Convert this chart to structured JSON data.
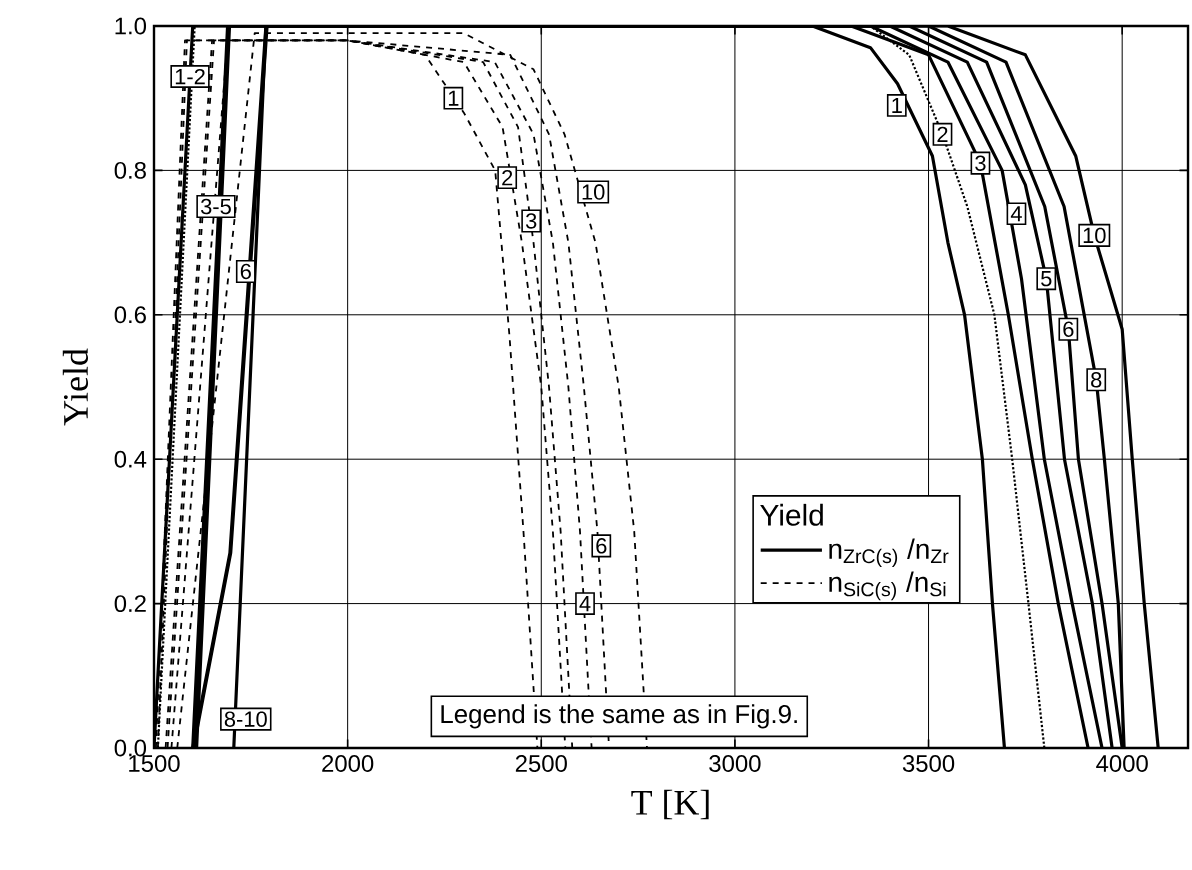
{
  "chart_data": {
    "type": "line",
    "xlabel": "T [K]",
    "ylabel": "Yield",
    "legend_title": "Yield",
    "legend": "right",
    "grid": true,
    "xlim": [
      1500,
      4170
    ],
    "xticks": [
      1500,
      2000,
      2500,
      3000,
      3500,
      4000
    ],
    "ylim": [
      0,
      1
    ],
    "yticks": [
      {
        "value": 0,
        "label": "0.0"
      },
      {
        "value": 0.2,
        "label": "0.2"
      },
      {
        "value": 0.4,
        "label": "0.4"
      },
      {
        "value": 0.6,
        "label": "0.6"
      },
      {
        "value": 0.8,
        "label": "0.8"
      },
      {
        "value": 1,
        "label": "1.0"
      }
    ],
    "series": [
      {
        "name": "n$_{ZrC(s)}$ /n$_{Zr}$",
        "color": "#000000",
        "line_style": "solid",
        "x": [
          1500,
          1600,
          2000,
          3000,
          3200,
          3350,
          3420,
          3510,
          3550,
          3593,
          3639,
          3665,
          3696
        ],
        "values": [
          0,
          1,
          1,
          1,
          1,
          0.97,
          0.92,
          0.82,
          0.7,
          0.6,
          0.4,
          0.2,
          0
        ]
      },
      {
        "color": "#000000",
        "line_style": "dotted",
        "x": [
          1510,
          1605,
          2000,
          3000,
          3350,
          3450,
          3536,
          3600,
          3670,
          3716,
          3758,
          3799
        ],
        "values": [
          0,
          1,
          1,
          1,
          1,
          0.96,
          0.85,
          0.75,
          0.6,
          0.4,
          0.2,
          0
        ]
      },
      {
        "color": "#000000",
        "line_style": "solid",
        "x": [
          1600,
          1690,
          2000,
          3000,
          3300,
          3500,
          3634,
          3706,
          3768,
          3835,
          3912
        ],
        "values": [
          0,
          1,
          1,
          1,
          1,
          0.96,
          0.81,
          0.6,
          0.4,
          0.2,
          0
        ]
      },
      {
        "color": "#000000",
        "line_style": "solid",
        "x": [
          1605,
          1692,
          2000,
          3000,
          3350,
          3550,
          3690,
          3740,
          3799,
          3871,
          3948
        ],
        "values": [
          0,
          1,
          1,
          1,
          1,
          0.95,
          0.8,
          0.65,
          0.4,
          0.2,
          0
        ]
      },
      {
        "color": "#000000",
        "line_style": "solid",
        "x": [
          1610,
          1695,
          2000,
          3000,
          3400,
          3600,
          3750,
          3804,
          3851,
          3923,
          3974
        ],
        "values": [
          0,
          1,
          1,
          1,
          1,
          0.95,
          0.78,
          0.65,
          0.4,
          0.2,
          0
        ]
      },
      {
        "color": "#000000",
        "line_style": "solid",
        "x": [
          1706,
          1789,
          2000,
          3000,
          3450,
          3650,
          3800,
          3861,
          3887,
          3948,
          4000
        ],
        "values": [
          0,
          1,
          1,
          1,
          1,
          0.95,
          0.75,
          0.58,
          0.4,
          0.2,
          0
        ]
      },
      {
        "color": "#000000",
        "line_style": "solid",
        "x": [
          1600,
          1696,
          1789,
          2000,
          3000,
          3500,
          3700,
          3850,
          3933,
          3954,
          3990,
          4005
        ],
        "values": [
          0,
          0.27,
          1,
          1,
          1,
          1,
          0.95,
          0.75,
          0.51,
          0.4,
          0.2,
          0
        ]
      },
      {
        "color": "#000000",
        "line_style": "solid",
        "x": [
          1602,
          1698,
          1792,
          2000,
          3000,
          3550,
          3750,
          3880,
          3928,
          4000,
          4026,
          4057,
          4093
        ],
        "values": [
          0,
          0.27,
          1,
          1,
          1,
          1,
          0.96,
          0.82,
          0.71,
          0.58,
          0.4,
          0.2,
          0
        ]
      },
      {
        "name": "n$_{SiC(s)}$ /n$_{Si}$",
        "color": "#000000",
        "line_style": "dashed",
        "x": [
          1505,
          1580,
          2000,
          2200,
          2300,
          2381,
          2418,
          2454,
          2490
        ],
        "values": [
          0,
          0.98,
          0.98,
          0.96,
          0.88,
          0.8,
          0.57,
          0.3,
          0
        ]
      },
      {
        "color": "#000000",
        "line_style": "dashed",
        "x": [
          1510,
          1585,
          2000,
          2300,
          2400,
          2450,
          2500,
          2530,
          2562
        ],
        "values": [
          0,
          0.98,
          0.98,
          0.95,
          0.86,
          0.7,
          0.5,
          0.3,
          0
        ]
      },
      {
        "color": "#000000",
        "line_style": "dashed",
        "x": [
          1530,
          1650,
          2000,
          2350,
          2440,
          2480,
          2520,
          2550,
          2580
        ],
        "values": [
          0,
          0.98,
          0.98,
          0.95,
          0.86,
          0.7,
          0.5,
          0.3,
          0
        ]
      },
      {
        "color": "#000000",
        "line_style": "dashed",
        "x": [
          1535,
          1655,
          2000,
          2380,
          2480,
          2530,
          2570,
          2600,
          2630
        ],
        "values": [
          0,
          0.98,
          0.98,
          0.95,
          0.85,
          0.7,
          0.5,
          0.3,
          0
        ]
      },
      {
        "color": "#000000",
        "line_style": "dashed",
        "x": [
          1545,
          1690,
          2000,
          2420,
          2520,
          2570,
          2610,
          2645,
          2675
        ],
        "values": [
          0,
          0.98,
          0.98,
          0.96,
          0.85,
          0.7,
          0.5,
          0.3,
          0
        ]
      },
      {
        "color": "#000000",
        "line_style": "dashed",
        "x": [
          1560,
          1760,
          2000,
          2300,
          2480,
          2560,
          2640,
          2700,
          2740,
          2773
        ],
        "values": [
          0,
          0.99,
          0.99,
          0.99,
          0.94,
          0.85,
          0.7,
          0.5,
          0.3,
          0
        ]
      }
    ],
    "annotations": [
      {
        "text": "1-2",
        "x": 1593,
        "y": 0.93
      },
      {
        "text": "3-5",
        "x": 1660,
        "y": 0.75
      },
      {
        "text": "6",
        "x": 1737,
        "y": 0.66
      },
      {
        "text": "8-10",
        "x": 1737,
        "y": 0.04
      },
      {
        "text": "1",
        "x": 2273,
        "y": 0.9
      },
      {
        "text": "2",
        "x": 2412,
        "y": 0.79
      },
      {
        "text": "3",
        "x": 2474,
        "y": 0.73
      },
      {
        "text": "10",
        "x": 2634,
        "y": 0.77
      },
      {
        "text": "6",
        "x": 2655,
        "y": 0.28
      },
      {
        "text": "4",
        "x": 2613,
        "y": 0.2
      },
      {
        "text": "1",
        "x": 3418,
        "y": 0.89
      },
      {
        "text": "2",
        "x": 3536,
        "y": 0.85
      },
      {
        "text": "3",
        "x": 3634,
        "y": 0.81
      },
      {
        "text": "4",
        "x": 3727,
        "y": 0.74
      },
      {
        "text": "5",
        "x": 3804,
        "y": 0.65
      },
      {
        "text": "6",
        "x": 3861,
        "y": 0.58
      },
      {
        "text": "8",
        "x": 3933,
        "y": 0.51
      },
      {
        "text": "10",
        "x": 3928,
        "y": 0.71
      },
      "Legend is the same as in Fig.9."
    ]
  }
}
